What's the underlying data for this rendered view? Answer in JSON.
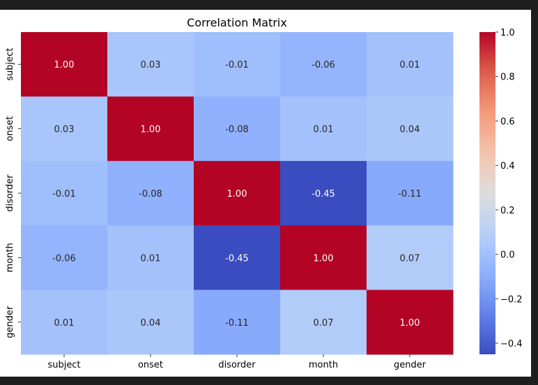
{
  "chart_data": {
    "type": "heatmap",
    "title": "Correlation Matrix",
    "x_labels": [
      "subject",
      "onset",
      "disorder",
      "month",
      "gender"
    ],
    "y_labels": [
      "subject",
      "onset",
      "disorder",
      "month",
      "gender"
    ],
    "values": [
      [
        1.0,
        0.03,
        -0.01,
        -0.06,
        0.01
      ],
      [
        0.03,
        1.0,
        -0.08,
        0.01,
        0.04
      ],
      [
        -0.01,
        -0.08,
        1.0,
        -0.45,
        -0.11
      ],
      [
        -0.06,
        0.01,
        -0.45,
        1.0,
        0.07
      ],
      [
        0.01,
        0.04,
        -0.11,
        0.07,
        1.0
      ]
    ],
    "annotation_format": "0.00",
    "colormap": "coolwarm",
    "colorbar": {
      "vmin": -0.45,
      "vmax": 1.0,
      "ticks": [
        1.0,
        0.8,
        0.6,
        0.4,
        0.2,
        0.0,
        -0.2,
        -0.4
      ],
      "tick_labels": [
        "1.0",
        "0.8",
        "0.6",
        "0.4",
        "0.2",
        "0.0",
        "−0.2",
        "−0.4"
      ],
      "placement": "right"
    },
    "grid": false
  }
}
